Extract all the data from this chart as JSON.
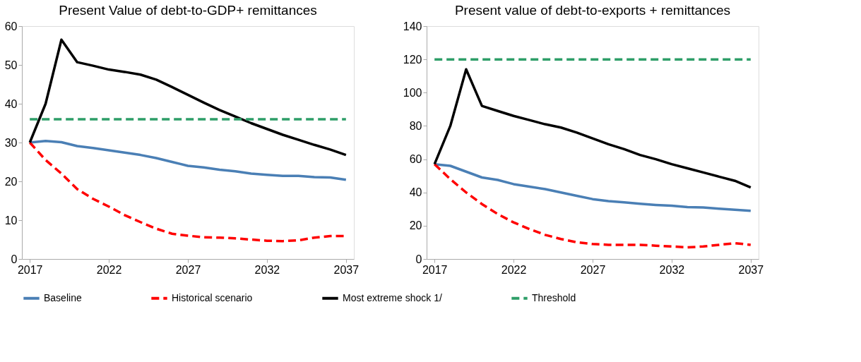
{
  "chart_data": [
    {
      "type": "line",
      "title": "Present Value of debt-to-GDP+ remittances",
      "x": [
        2017,
        2018,
        2019,
        2020,
        2021,
        2022,
        2023,
        2024,
        2025,
        2026,
        2027,
        2028,
        2029,
        2030,
        2031,
        2032,
        2033,
        2034,
        2035,
        2036,
        2037
      ],
      "xlim": [
        2016.5,
        2037.5
      ],
      "xticks": [
        2017,
        2022,
        2027,
        2032,
        2037
      ],
      "ylim": [
        0,
        60
      ],
      "yticks": [
        0,
        10,
        20,
        30,
        40,
        50,
        60
      ],
      "grid": false,
      "legend": "bottom",
      "series": [
        {
          "name": "Baseline",
          "color": "#4a7fb5",
          "line_style": "solid",
          "values": [
            30,
            30.4,
            30.1,
            29.1,
            28.6,
            28.0,
            27.4,
            26.8,
            26.0,
            25.0,
            24.0,
            23.6,
            23.0,
            22.6,
            22.0,
            21.7,
            21.4,
            21.4,
            21.1,
            21.0,
            20.4
          ]
        },
        {
          "name": "Historical scenario",
          "color": "#ff0000",
          "line_style": "dashed",
          "values": [
            30,
            25.5,
            22,
            18,
            15.5,
            13.5,
            11.3,
            9.5,
            7.8,
            6.5,
            6.0,
            5.6,
            5.5,
            5.3,
            5.0,
            4.7,
            4.6,
            4.8,
            5.5,
            5.9,
            5.9
          ]
        },
        {
          "name": "Most extreme shock 1/",
          "color": "#000000",
          "line_style": "solid",
          "values": [
            30,
            40,
            56.5,
            50.7,
            49.8,
            48.8,
            48.2,
            47.5,
            46.2,
            44.3,
            42.3,
            40.3,
            38.4,
            36.7,
            35,
            33.5,
            32,
            30.7,
            29.4,
            28.2,
            26.8
          ]
        },
        {
          "name": "Threshold",
          "color": "#2e9e68",
          "line_style": "dashed",
          "values": [
            36,
            36,
            36,
            36,
            36,
            36,
            36,
            36,
            36,
            36,
            36,
            36,
            36,
            36,
            36,
            36,
            36,
            36,
            36,
            36,
            36
          ]
        }
      ]
    },
    {
      "type": "line",
      "title": "Present value of debt-to-exports + remittances",
      "x": [
        2017,
        2018,
        2019,
        2020,
        2021,
        2022,
        2023,
        2024,
        2025,
        2026,
        2027,
        2028,
        2029,
        2030,
        2031,
        2032,
        2033,
        2034,
        2035,
        2036,
        2037
      ],
      "xlim": [
        2016.5,
        2037.5
      ],
      "xticks": [
        2017,
        2022,
        2027,
        2032,
        2037
      ],
      "ylim": [
        0,
        140
      ],
      "yticks": [
        0,
        20,
        40,
        60,
        80,
        100,
        120,
        140
      ],
      "grid": false,
      "legend": "bottom",
      "series": [
        {
          "name": "Baseline",
          "color": "#4a7fb5",
          "line_style": "solid",
          "values": [
            57,
            56,
            52.5,
            49,
            47.5,
            45,
            43.5,
            42,
            40,
            38,
            36,
            34.8,
            34,
            33.2,
            32.5,
            32,
            31.2,
            31,
            30.2,
            29.6,
            29
          ]
        },
        {
          "name": "Historical scenario",
          "color": "#ff0000",
          "line_style": "dashed",
          "values": [
            57,
            48,
            40,
            33,
            27,
            22,
            18,
            14.5,
            12,
            10,
            9,
            8.5,
            8.5,
            8.5,
            8,
            7.5,
            7,
            7.5,
            8.5,
            9.5,
            8.5
          ]
        },
        {
          "name": "Most extreme shock 1/",
          "color": "#000000",
          "line_style": "solid",
          "values": [
            57,
            80,
            114,
            92,
            89,
            86,
            83.5,
            81,
            79,
            76,
            72.5,
            69,
            66,
            62.5,
            60,
            57,
            54.5,
            52,
            49.5,
            47,
            43
          ]
        },
        {
          "name": "Threshold",
          "color": "#2e9e68",
          "line_style": "dashed",
          "values": [
            120,
            120,
            120,
            120,
            120,
            120,
            120,
            120,
            120,
            120,
            120,
            120,
            120,
            120,
            120,
            120,
            120,
            120,
            120,
            120,
            120
          ]
        }
      ]
    }
  ]
}
